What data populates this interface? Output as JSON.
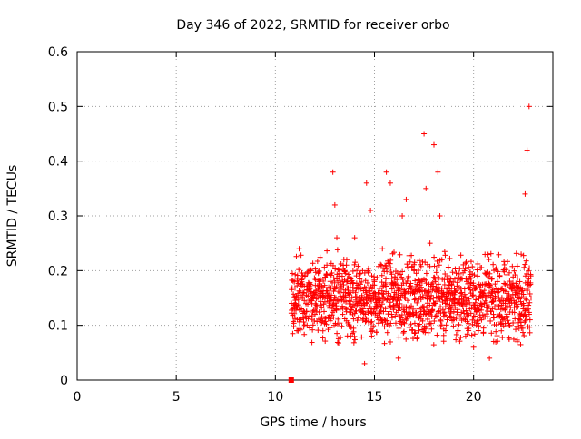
{
  "chart_data": {
    "type": "scatter",
    "title": "Day 346 of 2022, SRMTID for receiver orbo",
    "xlabel": "GPS time / hours",
    "ylabel": "SRMTID / TECUs",
    "xlim": [
      0,
      24
    ],
    "ylim": [
      0,
      0.6
    ],
    "xticks": [
      0,
      5,
      10,
      15,
      20
    ],
    "xtick_labels": [
      "0",
      "5",
      "10",
      "15",
      "20"
    ],
    "yticks": [
      0,
      0.1,
      0.2,
      0.3,
      0.4,
      0.5,
      0.6
    ],
    "ytick_labels": [
      "0",
      "0.1",
      "0.2",
      "0.3",
      "0.4",
      "0.5",
      "0.6"
    ],
    "grid": true,
    "marker": "plus",
    "color": "#ff0000",
    "series": [
      {
        "name": "SRMTID",
        "time_range_hours": [
          10.8,
          22.9
        ],
        "typical_range_tecu": [
          0.05,
          0.25
        ],
        "outlier_marker": {
          "x": 10.8,
          "y": 0.0
        },
        "points": [
          [
            11.0,
            0.14
          ],
          [
            11.2,
            0.24
          ],
          [
            11.4,
            0.16
          ],
          [
            11.6,
            0.1
          ],
          [
            11.8,
            0.2
          ],
          [
            12.0,
            0.12
          ],
          [
            12.2,
            0.18
          ],
          [
            12.4,
            0.09
          ],
          [
            12.6,
            0.21
          ],
          [
            12.8,
            0.15
          ],
          [
            12.9,
            0.38
          ],
          [
            13.0,
            0.32
          ],
          [
            13.1,
            0.26
          ],
          [
            13.2,
            0.19
          ],
          [
            13.4,
            0.12
          ],
          [
            13.6,
            0.22
          ],
          [
            13.8,
            0.08
          ],
          [
            14.0,
            0.26
          ],
          [
            14.2,
            0.14
          ],
          [
            14.4,
            0.2
          ],
          [
            14.5,
            0.03
          ],
          [
            14.6,
            0.36
          ],
          [
            14.8,
            0.31
          ],
          [
            15.0,
            0.18
          ],
          [
            15.2,
            0.11
          ],
          [
            15.4,
            0.24
          ],
          [
            15.6,
            0.38
          ],
          [
            15.8,
            0.36
          ],
          [
            16.0,
            0.16
          ],
          [
            16.2,
            0.04
          ],
          [
            16.4,
            0.3
          ],
          [
            16.6,
            0.33
          ],
          [
            16.8,
            0.12
          ],
          [
            17.0,
            0.2
          ],
          [
            17.2,
            0.09
          ],
          [
            17.4,
            0.18
          ],
          [
            17.5,
            0.45
          ],
          [
            17.6,
            0.35
          ],
          [
            17.8,
            0.25
          ],
          [
            18.0,
            0.43
          ],
          [
            18.2,
            0.38
          ],
          [
            18.3,
            0.3
          ],
          [
            18.4,
            0.22
          ],
          [
            18.6,
            0.14
          ],
          [
            18.8,
            0.18
          ],
          [
            19.0,
            0.11
          ],
          [
            19.2,
            0.09
          ],
          [
            19.4,
            0.16
          ],
          [
            19.6,
            0.08
          ],
          [
            19.8,
            0.13
          ],
          [
            20.0,
            0.06
          ],
          [
            20.2,
            0.19
          ],
          [
            20.4,
            0.11
          ],
          [
            20.6,
            0.15
          ],
          [
            20.8,
            0.04
          ],
          [
            21.0,
            0.12
          ],
          [
            21.2,
            0.18
          ],
          [
            21.4,
            0.09
          ],
          [
            21.6,
            0.14
          ],
          [
            21.8,
            0.1
          ],
          [
            22.0,
            0.17
          ],
          [
            22.2,
            0.07
          ],
          [
            22.4,
            0.23
          ],
          [
            22.6,
            0.34
          ],
          [
            22.7,
            0.42
          ],
          [
            22.8,
            0.5
          ],
          [
            22.9,
            0.15
          ]
        ]
      }
    ]
  }
}
